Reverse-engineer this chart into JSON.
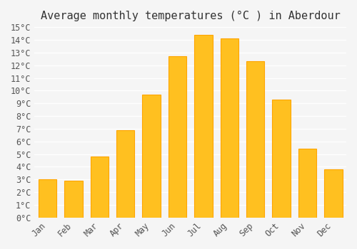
{
  "title": "Average monthly temperatures (°C ) in Aberdour",
  "months": [
    "Jan",
    "Feb",
    "Mar",
    "Apr",
    "May",
    "Jun",
    "Jul",
    "Aug",
    "Sep",
    "Oct",
    "Nov",
    "Dec"
  ],
  "values": [
    3.0,
    2.9,
    4.8,
    6.9,
    9.7,
    12.7,
    14.4,
    14.1,
    12.3,
    9.3,
    5.4,
    3.8
  ],
  "bar_color_main": "#FFC020",
  "bar_color_edge": "#FFA500",
  "ylim": [
    0,
    15
  ],
  "ytick_step": 1,
  "background_color": "#f5f5f5",
  "grid_color": "#ffffff",
  "title_fontsize": 11,
  "tick_fontsize": 8.5,
  "font_family": "monospace"
}
